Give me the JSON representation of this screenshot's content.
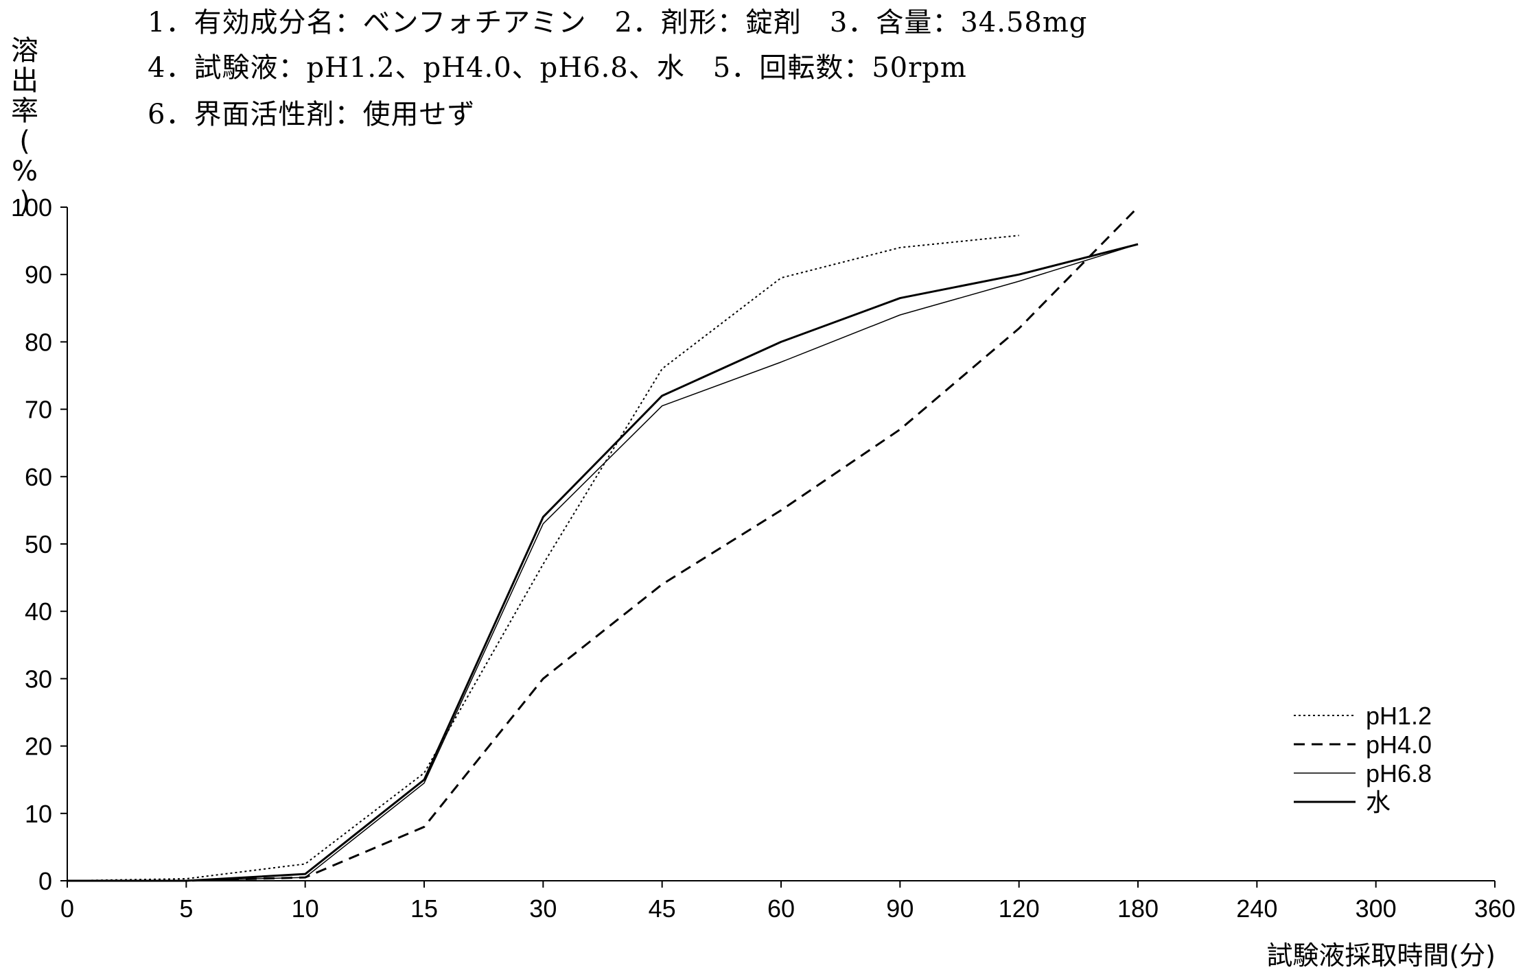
{
  "header": {
    "lines": [
      "1．有効成分名：ベンフォチアミン　2．剤形：錠剤　3．含量：34.58mg",
      "4．試験液：pH1.2、pH4.0、pH6.8、水　5．回転数：50rpm",
      "6．界面活性剤：使用せず"
    ]
  },
  "chart_data": {
    "type": "line",
    "ylabel": "溶出率(%)",
    "xlabel": "試験液採取時間(分)",
    "categories": [
      "0",
      "5",
      "10",
      "15",
      "30",
      "45",
      "60",
      "90",
      "120",
      "180",
      "240",
      "300",
      "360"
    ],
    "y_ticks": [
      "0",
      "10",
      "20",
      "30",
      "40",
      "50",
      "60",
      "70",
      "80",
      "90",
      "100"
    ],
    "ylim": [
      0,
      100
    ],
    "grid": false,
    "legend_position": "bottom-right",
    "series": [
      {
        "name": "pH1.2",
        "style": "dotted",
        "values": [
          0,
          0.3,
          2.5,
          16,
          47,
          76,
          89.5,
          94,
          95.8,
          null,
          null,
          null,
          null
        ]
      },
      {
        "name": "pH4.0",
        "style": "dashed",
        "values": [
          0,
          0,
          0.5,
          8,
          30,
          44,
          55,
          67,
          82,
          100,
          null,
          null,
          null
        ]
      },
      {
        "name": "pH6.8",
        "style": "thin",
        "values": [
          0,
          0,
          0.5,
          14.5,
          53,
          70.5,
          77,
          84,
          89,
          94.5,
          null,
          null,
          null
        ]
      },
      {
        "name": "水",
        "style": "solid",
        "values": [
          0,
          0,
          1,
          15,
          54,
          72,
          80,
          86.5,
          90,
          94.5,
          null,
          null,
          null
        ]
      }
    ]
  }
}
